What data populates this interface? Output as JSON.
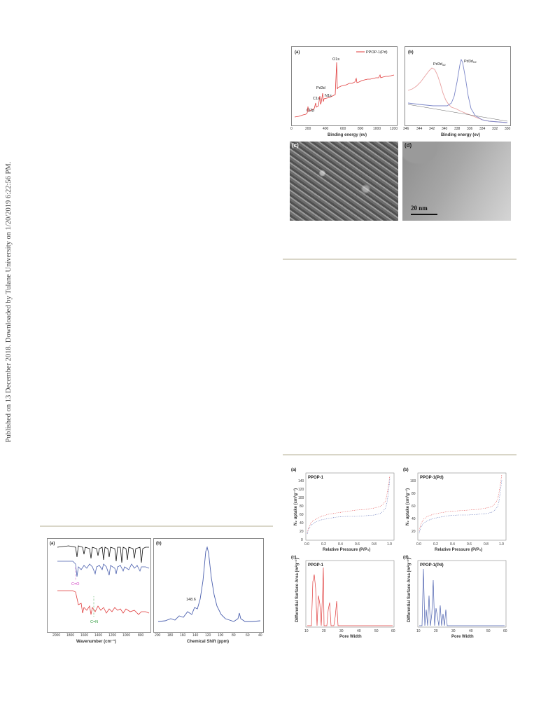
{
  "side_note": "Published on 13 December 2018. Downloaded by Tulane University on 1/20/2019 6:22:56 PM.",
  "colors": {
    "red": "#e03c3c",
    "blue": "#4a5fae",
    "black": "#111111",
    "rule": "#d9d6c8"
  },
  "fig_xps": {
    "a": {
      "label": "(a)",
      "legend": "PPOP-1(Pd)",
      "xlabel": "Binding energy (ev)",
      "xticks": [
        "0",
        "200",
        "400",
        "600",
        "800",
        "1000",
        "1200"
      ],
      "peaks": [
        "Cl2p",
        "C1s",
        "Pd3d",
        "N1s",
        "O1s"
      ]
    },
    "b": {
      "label": "(b)",
      "xlabel": "Binding energy (ev)",
      "xticks": [
        "346",
        "344",
        "342",
        "340",
        "338",
        "336",
        "334",
        "332",
        "330"
      ],
      "peak1": "Pd3d",
      "peak1_sub": "3/2",
      "peak2": "Pd3d",
      "peak2_sub": "5/2"
    },
    "c": {
      "label": "(c)"
    },
    "d": {
      "label": "(d)",
      "scale": "20 nm"
    }
  },
  "fig_ir": {
    "a": {
      "label": "(a)",
      "xlabel": "Wavenumber (cm⁻¹)",
      "xticks": [
        "2000",
        "1800",
        "1600",
        "1400",
        "1200",
        "1000",
        "800"
      ],
      "ann1": "C=O",
      "ann2": "C=N"
    },
    "b": {
      "label": "(b)",
      "xlabel": "Chemical Shift (ppm)",
      "xticks": [
        "200",
        "180",
        "160",
        "140",
        "120",
        "100",
        "80",
        "60",
        "40"
      ],
      "ann": "148.6"
    }
  },
  "fig_bet": {
    "a": {
      "label": "(a)",
      "title": "PPOP-1",
      "ylabel": "N₂ uptake (cm³g⁻¹)",
      "xlabel": "Relative Pressure (P/P₀)",
      "yticks": [
        "0",
        "20",
        "40",
        "60",
        "80",
        "100",
        "120",
        "140"
      ],
      "xticks": [
        "0.0",
        "0.2",
        "0.4",
        "0.6",
        "0.8",
        "1.0"
      ]
    },
    "b": {
      "label": "(b)",
      "title": "PPOP-1(Pd)",
      "ylabel": "N₂ uptake (cm³g⁻¹)",
      "xlabel": "Relative Pressure (P/P₀)",
      "yticks": [
        "20",
        "40",
        "60",
        "80",
        "100"
      ],
      "xticks": [
        "0.0",
        "0.2",
        "0.4",
        "0.6",
        "0.8",
        "1.0"
      ]
    },
    "c": {
      "label": "(c)",
      "title": "PPOP-1",
      "ylabel": "Differential Surface Area (m²g⁻¹)",
      "xlabel": "Pore Width",
      "xticks": [
        "10",
        "20",
        "30",
        "40",
        "50",
        "60"
      ]
    },
    "d": {
      "label": "(d)",
      "title": "PPOP-1(Pd)",
      "ylabel": "Differential Surface Area (m²g⁻¹)",
      "xlabel": "Pore Width",
      "xticks": [
        "10",
        "20",
        "30",
        "40",
        "50",
        "60"
      ]
    }
  }
}
